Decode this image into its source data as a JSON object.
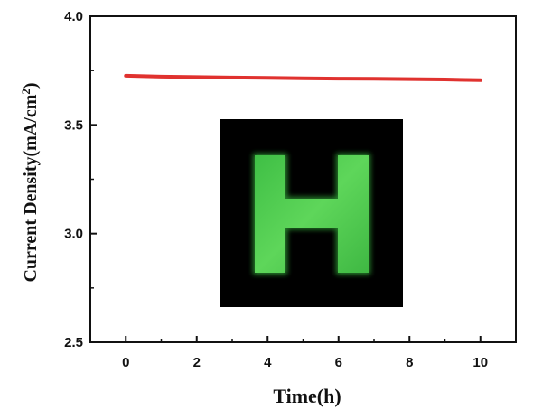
{
  "chart_data": {
    "type": "line",
    "xlabel": "Time(h)",
    "ylabel_main": "Current Density(mA/cm",
    "ylabel_sup": "2",
    "ylabel_close": ")",
    "xlim": [
      -1,
      11
    ],
    "ylim": [
      2.5,
      4.0
    ],
    "xticks": [
      0,
      2,
      4,
      6,
      8,
      10
    ],
    "yticks": [
      2.5,
      3.0,
      3.5,
      4.0
    ],
    "ytick_labels": [
      "2.5",
      "3.0",
      "3.5",
      "4.0"
    ],
    "grid": false,
    "series": [
      {
        "color": "#e0322f",
        "x": [
          0,
          1,
          2,
          3,
          4,
          5,
          6,
          7,
          8,
          9,
          10
        ],
        "y": [
          3.726,
          3.722,
          3.72,
          3.718,
          3.716,
          3.714,
          3.713,
          3.712,
          3.711,
          3.709,
          3.706
        ]
      }
    ],
    "inset": {
      "description_icon": "glowing-h-letter-photo",
      "background": "#000000",
      "glow_color": "#4cd04a"
    }
  }
}
